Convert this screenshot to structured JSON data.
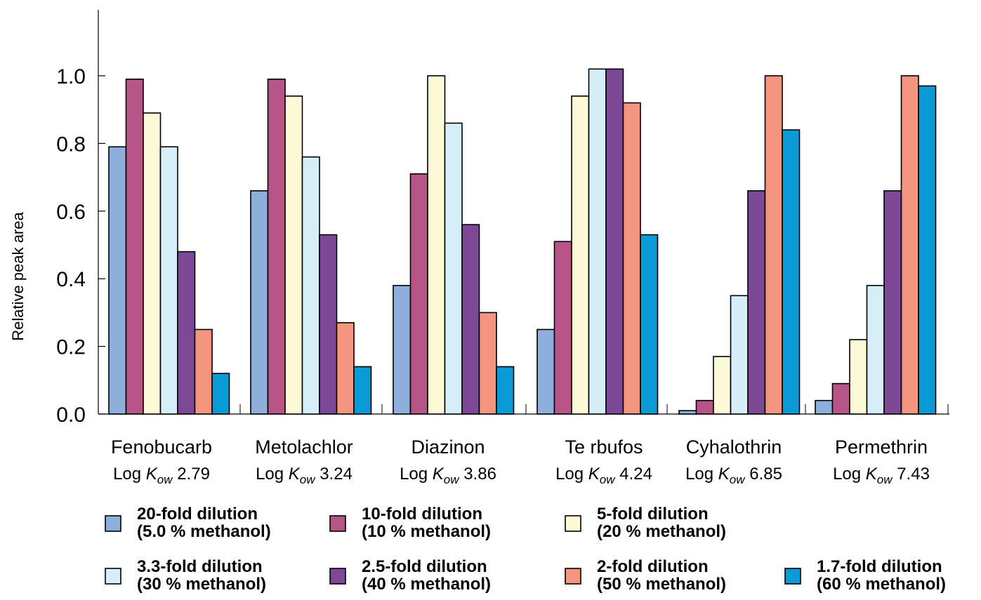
{
  "chart_data": {
    "type": "bar",
    "ylabel": "Relative peak area",
    "ylim": [
      0,
      1.0
    ],
    "yticks": [
      "0.0",
      "0.2",
      "0.4",
      "0.6",
      "0.8",
      "1.0"
    ],
    "categories": [
      {
        "name": "Fenobucarb",
        "kow_prefix": "Log ",
        "kow_symbol": "K",
        "kow_sub": "ow",
        "kow_value": "2.79"
      },
      {
        "name": "Metolachlor",
        "kow_prefix": "Log ",
        "kow_symbol": "K",
        "kow_sub": "ow",
        "kow_value": "3.24"
      },
      {
        "name": "Diazinon",
        "kow_prefix": "Log ",
        "kow_symbol": "K",
        "kow_sub": "ow",
        "kow_value": "3.86"
      },
      {
        "name": "Te rbufos",
        "kow_prefix": "Log ",
        "kow_symbol": "K",
        "kow_sub": "ow",
        "kow_value": "4.24"
      },
      {
        "name": "Cyhalothrin",
        "kow_prefix": "Log ",
        "kow_symbol": "K",
        "kow_sub": "ow",
        "kow_value": "6.85"
      },
      {
        "name": "Permethrin",
        "kow_prefix": "Log ",
        "kow_symbol": "K",
        "kow_sub": "ow",
        "kow_value": "7.43"
      }
    ],
    "series": [
      {
        "line1": "20-fold dilution",
        "line2": "(5.0 % methanol)",
        "color": "#8eaedb",
        "values": [
          0.79,
          0.66,
          0.38,
          0.25,
          0.01,
          0.04
        ]
      },
      {
        "line1": "10-fold dilution",
        "line2": "(10 % methanol)",
        "color": "#b85588",
        "values": [
          0.99,
          0.99,
          0.71,
          0.51,
          0.04,
          0.09
        ]
      },
      {
        "line1": "5-fold dilution",
        "line2": "(20 % methanol)",
        "color": "#fcf9d6",
        "values": [
          0.89,
          0.94,
          1.0,
          0.94,
          0.17,
          0.22
        ]
      },
      {
        "line1": "3.3-fold dilution",
        "line2": "(30 % methanol)",
        "color": "#d6eef8",
        "values": [
          0.79,
          0.76,
          0.86,
          1.02,
          0.35,
          0.38
        ]
      },
      {
        "line1": "2.5-fold dilution",
        "line2": "(40 % methanol)",
        "color": "#7d4895",
        "values": [
          0.48,
          0.53,
          0.56,
          1.02,
          0.66,
          0.66
        ]
      },
      {
        "line1": "2-fold dilution",
        "line2": "(50 % methanol)",
        "color": "#f3957f",
        "values": [
          0.25,
          0.27,
          0.3,
          0.92,
          1.0,
          1.0
        ]
      },
      {
        "line1": "1.7-fold dilution",
        "line2": "(60 % methanol)",
        "color": "#0a9ad6",
        "values": [
          0.12,
          0.14,
          0.14,
          0.53,
          0.84,
          0.97
        ]
      }
    ],
    "legend_position": "bottom",
    "grid": false
  }
}
